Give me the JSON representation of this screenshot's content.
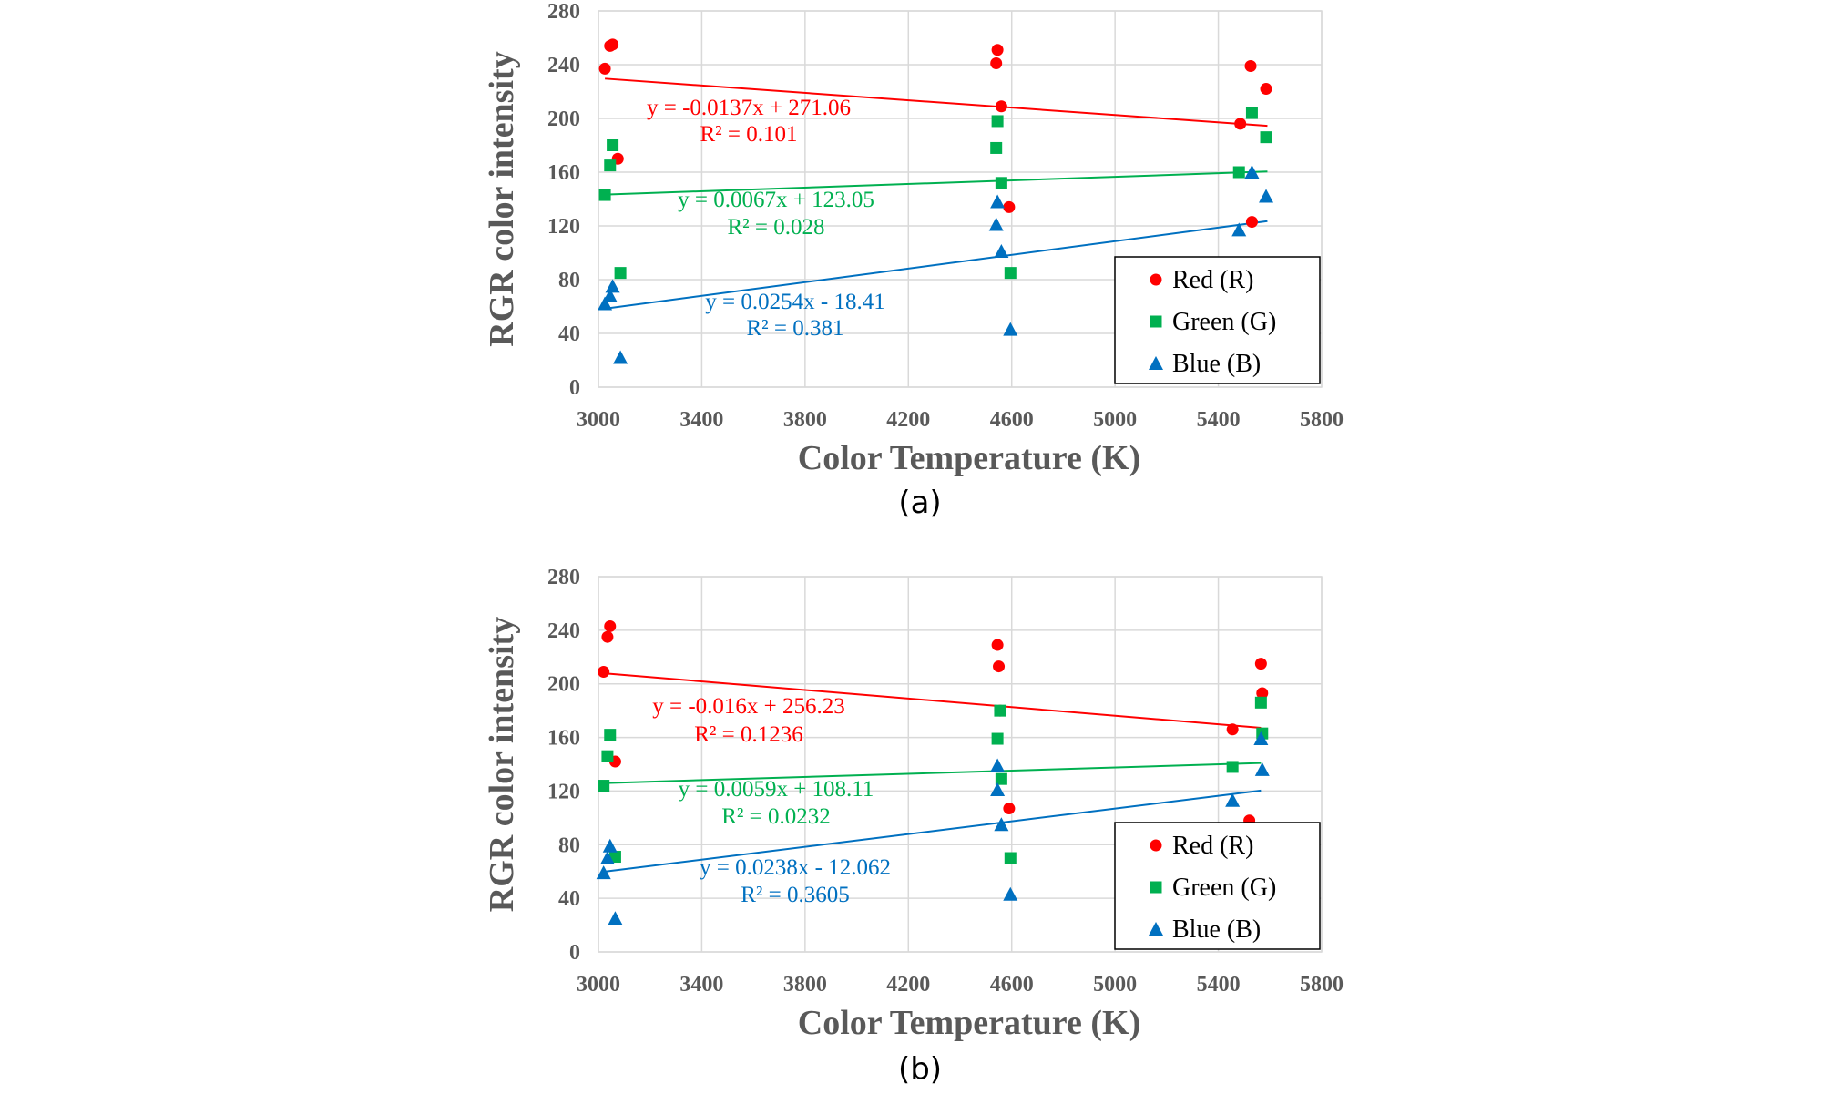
{
  "chart_data": [
    {
      "type": "scatter",
      "panel_label": "(a)",
      "xlabel": "Color Temperature (K)",
      "ylabel": "RGR color intensity",
      "xlim": [
        3000,
        5800
      ],
      "ylim": [
        0,
        280
      ],
      "xticks": [
        3000,
        3400,
        3800,
        4200,
        4600,
        5000,
        5400,
        5800
      ],
      "yticks": [
        0,
        40,
        80,
        120,
        160,
        200,
        240,
        280
      ],
      "grid": true,
      "legend_position": "lower-right",
      "series": [
        {
          "name": "Red (R)",
          "marker": "circle",
          "color": "#ff0000",
          "points": [
            [
              3025,
              237
            ],
            [
              3045,
              254
            ],
            [
              3055,
              255
            ],
            [
              3075,
              170
            ],
            [
              4540,
              241
            ],
            [
              4545,
              251
            ],
            [
              4560,
              209
            ],
            [
              4590,
              134
            ],
            [
              5485,
              196
            ],
            [
              5525,
              239
            ],
            [
              5530,
              123
            ],
            [
              5585,
              222
            ]
          ],
          "trendline": {
            "equation": "y = -0.0137x + 271.06",
            "r2": "R² = 0.101",
            "x_range": [
              3025,
              5590
            ],
            "color": "#ff0000"
          }
        },
        {
          "name": "Green (G)",
          "marker": "square",
          "color": "#00b050",
          "points": [
            [
              3025,
              143
            ],
            [
              3045,
              165
            ],
            [
              3055,
              180
            ],
            [
              3085,
              85
            ],
            [
              4540,
              178
            ],
            [
              4545,
              198
            ],
            [
              4560,
              152
            ],
            [
              4595,
              85
            ],
            [
              5480,
              160
            ],
            [
              5530,
              204
            ],
            [
              5585,
              186
            ]
          ],
          "trendline": {
            "equation": "y = 0.0067x + 123.05",
            "r2": "R² = 0.028",
            "x_range": [
              3025,
              5590
            ],
            "color": "#00b050"
          }
        },
        {
          "name": "Blue (B)",
          "marker": "triangle",
          "color": "#0070c0",
          "points": [
            [
              3025,
              62
            ],
            [
              3045,
              68
            ],
            [
              3055,
              75
            ],
            [
              3085,
              22
            ],
            [
              4540,
              121
            ],
            [
              4545,
              138
            ],
            [
              4560,
              101
            ],
            [
              4595,
              43
            ],
            [
              5480,
              117
            ],
            [
              5530,
              160
            ],
            [
              5585,
              142
            ]
          ],
          "trendline": {
            "equation": "y = 0.0254x - 18.41",
            "r2": "R² = 0.381",
            "x_range": [
              3025,
              5590
            ],
            "color": "#0070c0"
          }
        }
      ]
    },
    {
      "type": "scatter",
      "panel_label": "(b)",
      "xlabel": "Color Temperature (K)",
      "ylabel": "RGR color intensity",
      "xlim": [
        3000,
        5800
      ],
      "ylim": [
        0,
        280
      ],
      "xticks": [
        3000,
        3400,
        3800,
        4200,
        4600,
        5000,
        5400,
        5800
      ],
      "yticks": [
        0,
        40,
        80,
        120,
        160,
        200,
        240,
        280
      ],
      "grid": true,
      "legend_position": "lower-right",
      "series": [
        {
          "name": "Red (R)",
          "marker": "circle",
          "color": "#ff0000",
          "points": [
            [
              3020,
              209
            ],
            [
              3035,
              235
            ],
            [
              3045,
              243
            ],
            [
              3065,
              142
            ],
            [
              4545,
              229
            ],
            [
              4550,
              213
            ],
            [
              4555,
              180
            ],
            [
              4590,
              107
            ],
            [
              5455,
              166
            ],
            [
              5520,
              98
            ],
            [
              5565,
              215
            ],
            [
              5570,
              193
            ]
          ],
          "trendline": {
            "equation": "y = -0.016x + 256.23",
            "r2": "R² = 0.1236",
            "x_range": [
              3020,
              5565
            ],
            "color": "#ff0000"
          }
        },
        {
          "name": "Green (G)",
          "marker": "square",
          "color": "#00b050",
          "points": [
            [
              3020,
              124
            ],
            [
              3035,
              146
            ],
            [
              3045,
              162
            ],
            [
              3065,
              71
            ],
            [
              4545,
              159
            ],
            [
              4555,
              180
            ],
            [
              4560,
              129
            ],
            [
              4595,
              70
            ],
            [
              5455,
              138
            ],
            [
              5565,
              186
            ],
            [
              5570,
              163
            ]
          ],
          "trendline": {
            "equation": "y = 0.0059x + 108.11",
            "r2": "R² = 0.0232",
            "x_range": [
              3020,
              5565
            ],
            "color": "#00b050"
          }
        },
        {
          "name": "Blue (B)",
          "marker": "triangle",
          "color": "#0070c0",
          "points": [
            [
              3020,
              59
            ],
            [
              3035,
              70
            ],
            [
              3045,
              79
            ],
            [
              3065,
              25
            ],
            [
              4545,
              121
            ],
            [
              4545,
              139
            ],
            [
              4560,
              95
            ],
            [
              4595,
              43
            ],
            [
              5455,
              113
            ],
            [
              5565,
              159
            ],
            [
              5570,
              136
            ]
          ],
          "trendline": {
            "equation": "y = 0.0238x - 12.062",
            "r2": "R² = 0.3605",
            "x_range": [
              3020,
              5565
            ],
            "color": "#0070c0"
          }
        }
      ]
    }
  ]
}
